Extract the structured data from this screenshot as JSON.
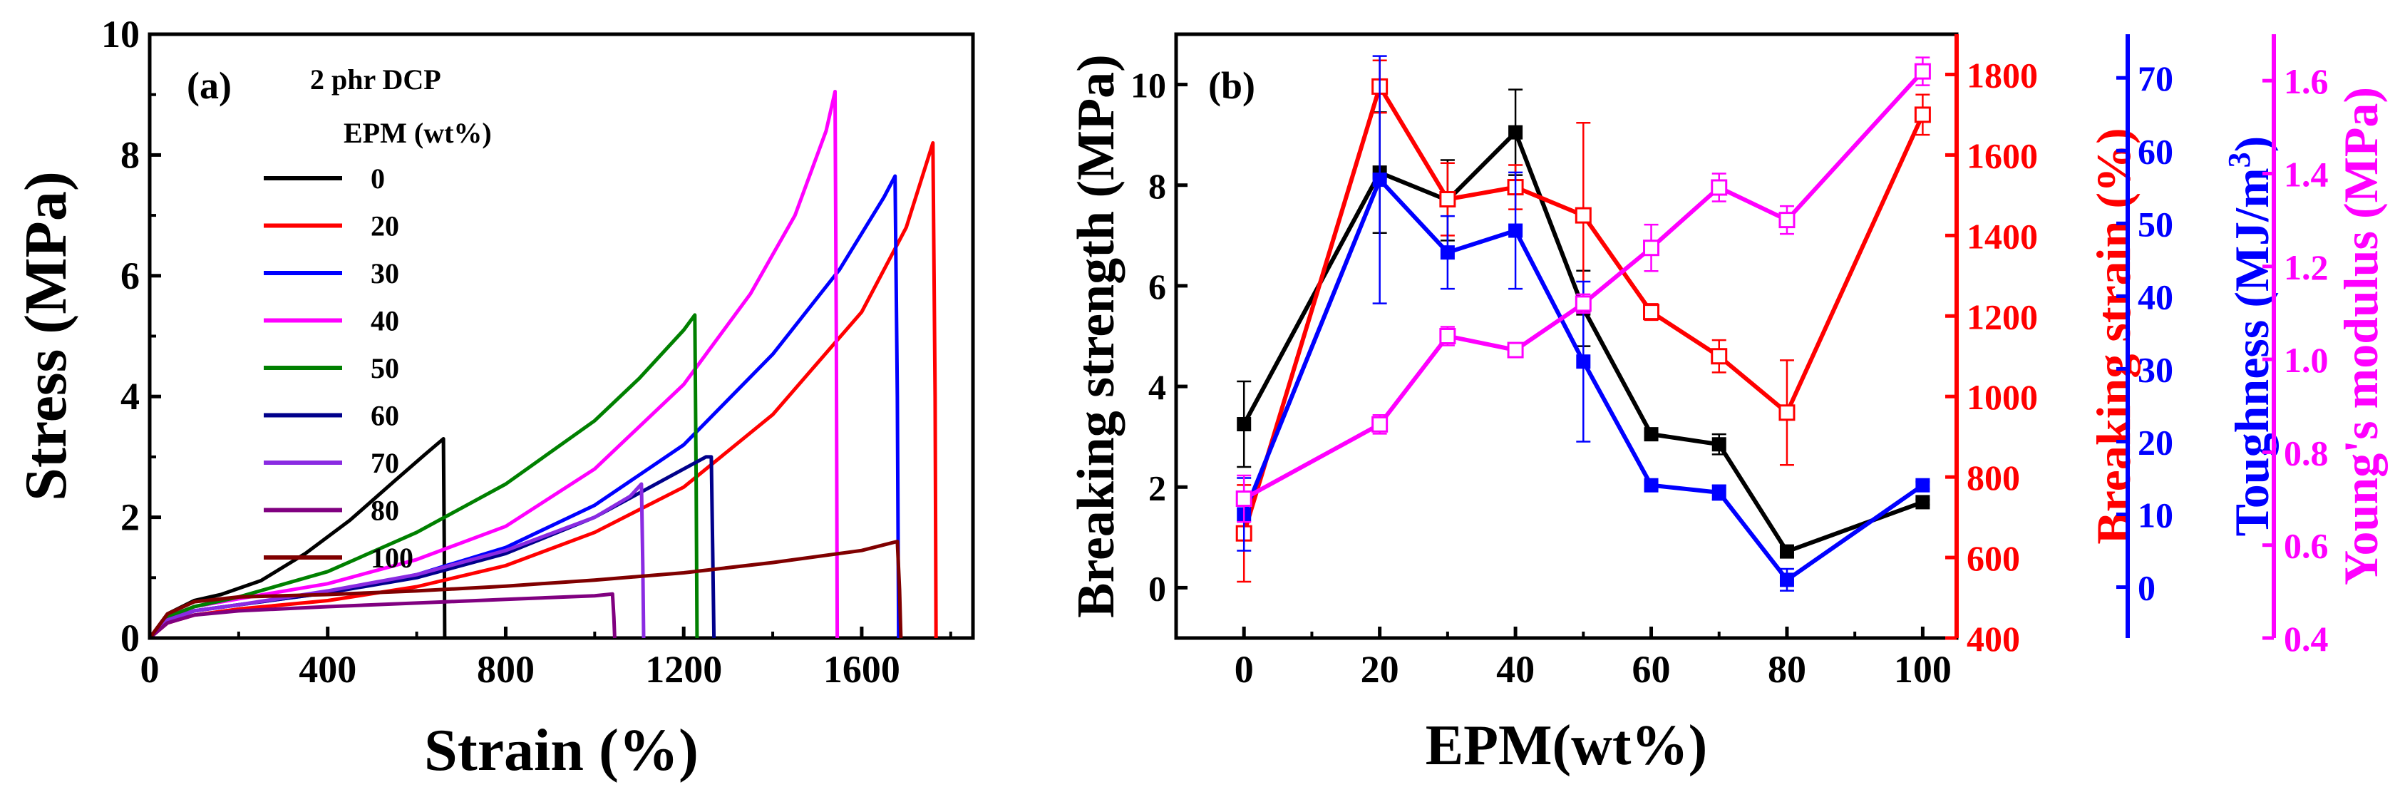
{
  "chart_data": [
    {
      "type": "line",
      "panel_label": "(a)",
      "title": "",
      "xlabel": "Strain (%)",
      "ylabel": "Stress (MPa)",
      "xlim": [
        0,
        1850
      ],
      "ylim": [
        0,
        10
      ],
      "xticks": [
        "0",
        "400",
        "800",
        "1200",
        "1600"
      ],
      "yticks": [
        "0",
        "2",
        "4",
        "6",
        "8",
        "10"
      ],
      "legend_title_1": "2 phr DCP",
      "legend_title_2": "EPM (wt%)",
      "grid": false,
      "series": [
        {
          "name": "0",
          "color": "#000000",
          "x": [
            0,
            40,
            100,
            160,
            250,
            350,
            450,
            550,
            620,
            660,
            662,
            663
          ],
          "y": [
            0,
            0.4,
            0.62,
            0.72,
            0.95,
            1.4,
            1.95,
            2.6,
            3.05,
            3.3,
            1.5,
            0
          ]
        },
        {
          "name": "20",
          "color": "#ff0000",
          "x": [
            0,
            40,
            100,
            200,
            400,
            600,
            800,
            1000,
            1200,
            1400,
            1600,
            1700,
            1760,
            1765,
            1767
          ],
          "y": [
            0,
            0.25,
            0.38,
            0.48,
            0.62,
            0.85,
            1.2,
            1.75,
            2.5,
            3.7,
            5.4,
            6.8,
            8.2,
            4,
            0
          ]
        },
        {
          "name": "30",
          "color": "#0000ff",
          "x": [
            0,
            40,
            100,
            200,
            400,
            600,
            800,
            1000,
            1200,
            1400,
            1550,
            1650,
            1675,
            1680,
            1683
          ],
          "y": [
            0,
            0.3,
            0.45,
            0.55,
            0.75,
            1.05,
            1.5,
            2.2,
            3.2,
            4.7,
            6.1,
            7.3,
            7.65,
            4,
            0
          ]
        },
        {
          "name": "40",
          "color": "#ff00ff",
          "x": [
            0,
            40,
            100,
            200,
            400,
            600,
            800,
            1000,
            1200,
            1350,
            1450,
            1520,
            1540,
            1543,
            1545
          ],
          "y": [
            0,
            0.35,
            0.52,
            0.65,
            0.9,
            1.3,
            1.85,
            2.8,
            4.2,
            5.7,
            7.0,
            8.4,
            9.05,
            5,
            0
          ]
        },
        {
          "name": "50",
          "color": "#008000",
          "x": [
            0,
            40,
            100,
            200,
            400,
            600,
            800,
            1000,
            1100,
            1200,
            1225,
            1228,
            1230
          ],
          "y": [
            0,
            0.35,
            0.52,
            0.68,
            1.1,
            1.75,
            2.55,
            3.6,
            4.3,
            5.1,
            5.35,
            2.5,
            0
          ]
        },
        {
          "name": "60",
          "color": "#00008b",
          "x": [
            0,
            40,
            100,
            200,
            400,
            600,
            800,
            1000,
            1100,
            1200,
            1250,
            1262,
            1265,
            1268
          ],
          "y": [
            0,
            0.3,
            0.45,
            0.55,
            0.75,
            1.0,
            1.4,
            2.0,
            2.4,
            2.8,
            3.0,
            3.0,
            1.5,
            0
          ]
        },
        {
          "name": "70",
          "color": "#8a2be2",
          "x": [
            0,
            40,
            100,
            200,
            400,
            600,
            800,
            1000,
            1080,
            1105,
            1108,
            1110
          ],
          "y": [
            0,
            0.3,
            0.45,
            0.55,
            0.78,
            1.05,
            1.45,
            2.0,
            2.35,
            2.55,
            1.2,
            0
          ]
        },
        {
          "name": "80",
          "color": "#800080",
          "x": [
            0,
            40,
            100,
            200,
            400,
            600,
            800,
            1000,
            1040,
            1043,
            1045
          ],
          "y": [
            0,
            0.25,
            0.38,
            0.45,
            0.52,
            0.58,
            0.64,
            0.7,
            0.73,
            0.35,
            0
          ]
        },
        {
          "name": "100",
          "color": "#800000",
          "x": [
            0,
            40,
            100,
            200,
            400,
            600,
            800,
            1000,
            1200,
            1400,
            1600,
            1680,
            1685,
            1688
          ],
          "y": [
            0,
            0.4,
            0.6,
            0.68,
            0.72,
            0.78,
            0.86,
            0.96,
            1.08,
            1.25,
            1.45,
            1.6,
            0.8,
            0
          ]
        }
      ]
    },
    {
      "type": "line",
      "panel_label": "(b)",
      "title": "",
      "xlabel": "EPM(wt%)",
      "x": [
        0,
        20,
        30,
        40,
        50,
        60,
        70,
        80,
        100
      ],
      "xlim": [
        -10,
        105
      ],
      "xticks": [
        "0",
        "20",
        "40",
        "60",
        "80",
        "100"
      ],
      "axes": [
        {
          "name": "Breaking strength (MPa)",
          "color": "#000000",
          "lim": [
            -1,
            11
          ],
          "ticks": [
            "0",
            "2",
            "4",
            "6",
            "8",
            "10"
          ]
        },
        {
          "name": "Breaking strain (%)",
          "color": "#ff0000",
          "lim": [
            400,
            1900
          ],
          "ticks": [
            "400",
            "600",
            "800",
            "1000",
            "1200",
            "1400",
            "1600",
            "1800"
          ]
        },
        {
          "name": "Toughness (MJ/m",
          "name_sup": "3",
          "name_end": ")",
          "color": "#0000ff",
          "lim": [
            -7,
            76
          ],
          "ticks": [
            "0",
            "10",
            "20",
            "30",
            "40",
            "50",
            "60",
            "70"
          ]
        },
        {
          "name": "Young's modulus (MPa)",
          "color": "#ff00ff",
          "lim": [
            0.4,
            1.7
          ],
          "ticks": [
            "0.4",
            "0.6",
            "0.8",
            "1.0",
            "1.2",
            "1.4",
            "1.6"
          ]
        }
      ],
      "series": [
        {
          "name": "Breaking strength",
          "axis": 0,
          "color": "#000000",
          "marker": "filled-square",
          "values": [
            3.25,
            8.25,
            7.7,
            9.05,
            5.55,
            3.05,
            2.85,
            0.72,
            1.7
          ],
          "errors": [
            0.85,
            1.2,
            0.8,
            0.85,
            0.75,
            0.05,
            0.2,
            0.1,
            0.05
          ]
        },
        {
          "name": "Breaking strain",
          "axis": 1,
          "color": "#ff0000",
          "marker": "open-square",
          "values": [
            660,
            1770,
            1490,
            1520,
            1450,
            1210,
            1100,
            960,
            1700
          ],
          "errors": [
            120,
            65,
            90,
            55,
            230,
            20,
            40,
            130,
            50
          ]
        },
        {
          "name": "Toughness",
          "axis": 2,
          "color": "#0000ff",
          "marker": "filled-square",
          "values": [
            10,
            56,
            46,
            49,
            31,
            14,
            13,
            1,
            14
          ],
          "errors": [
            5,
            17,
            5,
            8,
            11,
            0.5,
            1,
            1.5,
            0.5
          ]
        },
        {
          "name": "Young's modulus",
          "axis": 3,
          "color": "#ff00ff",
          "marker": "open-square",
          "values": [
            0.7,
            0.86,
            1.05,
            1.02,
            1.12,
            1.24,
            1.37,
            1.3,
            1.62
          ],
          "errors": [
            0.05,
            0.02,
            0.02,
            0.01,
            0.02,
            0.05,
            0.03,
            0.03,
            0.03
          ]
        }
      ]
    }
  ]
}
